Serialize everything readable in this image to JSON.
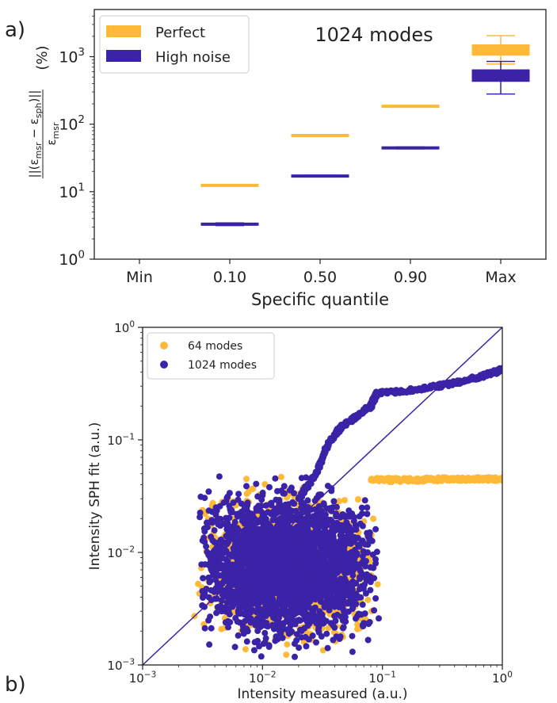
{
  "panel_labels": {
    "a": "a)",
    "b": "b)"
  },
  "colors": {
    "perfect": "#ffb938",
    "high_noise": "#3b23a8",
    "frame": "#222222",
    "diagonal": "#3b23a8"
  },
  "chart_data": [
    {
      "type": "box",
      "title": "1024 modes",
      "xlabel": "Specific quantile",
      "ylabel_parts": {
        "numerator": "||(ε",
        "num_sub1": "msr",
        "minus": " − ε",
        "num_sub2": "sph",
        "num_end": ")||",
        "denominator": "ε",
        "den_sub": "msr",
        "unit": "(%)"
      },
      "y_scale": "log",
      "ylim": [
        1,
        5000
      ],
      "yticks": [
        {
          "value": 1,
          "base": "10",
          "exp": "0"
        },
        {
          "value": 10,
          "base": "10",
          "exp": "1"
        },
        {
          "value": 100,
          "base": "10",
          "exp": "2"
        },
        {
          "value": 1000,
          "base": "10",
          "exp": "3"
        }
      ],
      "categories": [
        "Min",
        "0.10",
        "0.50",
        "0.90",
        "Max"
      ],
      "legend": {
        "location": "upper left",
        "entries": [
          "Perfect",
          "High noise"
        ]
      },
      "series": [
        {
          "name": "Perfect",
          "color_key": "perfect",
          "boxes": [
            null,
            {
              "whislo": 12.1,
              "q1": 12.2,
              "med": 12.4,
              "q3": 12.6,
              "whishi": 12.7
            },
            {
              "whislo": 67,
              "q1": 67.5,
              "med": 68,
              "q3": 68.5,
              "whishi": 69
            },
            {
              "whislo": 180,
              "q1": 182,
              "med": 184,
              "q3": 186,
              "whishi": 188
            },
            {
              "whislo": 780,
              "q1": 1050,
              "med": 1250,
              "q3": 1500,
              "whishi": 2050
            }
          ]
        },
        {
          "name": "High noise",
          "color_key": "high_noise",
          "boxes": [
            null,
            {
              "whislo": 3.15,
              "q1": 3.2,
              "med": 3.3,
              "q3": 3.4,
              "whishi": 3.45
            },
            {
              "whislo": 16.6,
              "q1": 16.8,
              "med": 17,
              "q3": 17.3,
              "whishi": 17.5
            },
            {
              "whislo": 43,
              "q1": 43.8,
              "med": 44.5,
              "q3": 45.2,
              "whishi": 46
            },
            {
              "whislo": 280,
              "q1": 430,
              "med": 520,
              "q3": 640,
              "whishi": 850
            }
          ]
        }
      ]
    },
    {
      "type": "scatter",
      "xlabel": "Intensity measured (a.u.)",
      "ylabel": "Intensity SPH fit (a.u.)",
      "x_scale": "log",
      "y_scale": "log",
      "xlim": [
        0.001,
        1
      ],
      "ylim": [
        0.001,
        1
      ],
      "xticks": [
        {
          "value": 0.001,
          "base": "10",
          "exp": "−3"
        },
        {
          "value": 0.01,
          "base": "10",
          "exp": "−2"
        },
        {
          "value": 0.1,
          "base": "10",
          "exp": "−1"
        },
        {
          "value": 1,
          "base": "10",
          "exp": "0"
        }
      ],
      "yticks": [
        {
          "value": 0.001,
          "base": "10",
          "exp": "−3"
        },
        {
          "value": 0.01,
          "base": "10",
          "exp": "−2"
        },
        {
          "value": 0.1,
          "base": "10",
          "exp": "−1"
        },
        {
          "value": 1,
          "base": "10",
          "exp": "0"
        }
      ],
      "reference_line": "y = x",
      "legend": {
        "location": "upper left",
        "entries": [
          "64 modes",
          "1024 modes"
        ]
      },
      "series": [
        {
          "name": "64 modes",
          "color_key": "perfect",
          "clusters": [
            {
              "x_range": [
                0.0026,
                0.095
              ],
              "y_range": [
                0.001,
                0.055
              ],
              "count": 1100
            }
          ],
          "trend": [
            [
              0.08,
              0.044
            ],
            [
              0.15,
              0.044
            ],
            [
              0.3,
              0.0445
            ],
            [
              0.6,
              0.045
            ],
            [
              1.0,
              0.045
            ]
          ]
        },
        {
          "name": "1024 modes",
          "color_key": "high_noise",
          "clusters": [
            {
              "x_range": [
                0.0028,
                0.095
              ],
              "y_range": [
                0.001,
                0.058
              ],
              "count": 2600
            }
          ],
          "trend": [
            [
              0.02,
              0.03
            ],
            [
              0.028,
              0.05
            ],
            [
              0.035,
              0.09
            ],
            [
              0.045,
              0.13
            ],
            [
              0.06,
              0.16
            ],
            [
              0.08,
              0.2
            ],
            [
              0.09,
              0.26
            ],
            [
              0.2,
              0.28
            ],
            [
              0.4,
              0.32
            ],
            [
              0.7,
              0.37
            ],
            [
              1.0,
              0.42
            ]
          ]
        }
      ]
    }
  ]
}
